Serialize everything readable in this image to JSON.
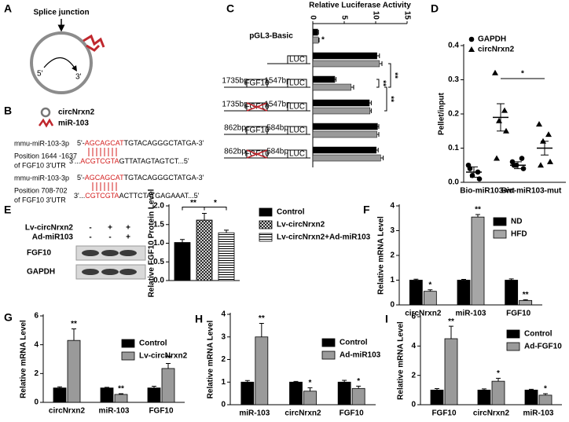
{
  "figure_a": {
    "label": "A",
    "junction": "Splice junction",
    "five_prime": "5'",
    "three_prime": "3'"
  },
  "figure_b": {
    "label": "B",
    "legend": [
      "circNrxn2",
      "miR-103"
    ],
    "sites": [
      {
        "mirna": "mmu-miR-103-3p",
        "mirna_seq": [
          "5'-",
          "AGCAGCAT",
          "TGTACAGGGCTATGA-3'"
        ],
        "position": "Position 1644 -1637",
        "utr": "of FGF10 3'UTR",
        "target_seq": [
          "3'...",
          "ACGTCGTA",
          "GTTATAGTAGTCT...5'"
        ]
      },
      {
        "mirna": "mmu-miR-103-3p",
        "mirna_seq": [
          "5'-",
          "AGCAGCAT",
          "TGTACAGGGCTATGA-3'"
        ],
        "position": "Position 708-702",
        "utr": "of FGF10 3'UTR",
        "target_seq": [
          "3'...",
          "CGTCGTA",
          "ACTTCTATGAGAAAT...5'"
        ]
      }
    ]
  },
  "chart_data": [
    {
      "label": "C",
      "type": "hbar",
      "xlabel": "Relative Luciferase Activity",
      "xlim": [
        0,
        15
      ],
      "xticks": [
        0,
        5,
        10,
        15
      ],
      "categories": [
        "pGL3-Basic",
        null,
        null,
        null,
        null,
        null
      ],
      "constructs": [
        null,
        {
          "reporter": "LUC"
        },
        {
          "left": "1735bp",
          "gene": "FGF10",
          "right": "1547bp",
          "reporter": "LUC",
          "mutated": false
        },
        {
          "left": "1735bp",
          "gene": "FGF10",
          "right": "1547bp",
          "reporter": "LUC",
          "mutated": true
        },
        {
          "left": "862bp",
          "gene": "FGF10",
          "right": "584bp",
          "reporter": "LUC",
          "mutated": false
        },
        {
          "left": "862bp",
          "gene": "FGF10",
          "right": "584bp",
          "reporter": "LUC",
          "mutated": true
        }
      ],
      "series": [
        {
          "color": "#000000",
          "values": [
            0.8,
            10.2,
            3.5,
            9.0,
            10.3,
            10.1
          ],
          "errors": [
            0.1,
            0.4,
            0.2,
            0.3,
            0.2,
            0.3
          ]
        },
        {
          "color": "#9a9a9a",
          "values": [
            0.9,
            10.6,
            6.1,
            9.1,
            10.2,
            10.8
          ],
          "errors": [
            0.1,
            0.4,
            0.4,
            0.2,
            0.3,
            0.4
          ],
          "significance": [
            "*",
            null,
            null,
            null,
            null,
            null
          ]
        }
      ],
      "brackets": [
        {
          "text": "**",
          "from": [
            1,
            1
          ],
          "to": [
            1,
            2
          ]
        },
        {
          "text": "**",
          "from": [
            0,
            2
          ],
          "to": [
            1,
            2
          ]
        },
        {
          "text": "**",
          "from": [
            1,
            2
          ],
          "to": [
            1,
            3
          ]
        }
      ]
    },
    {
      "label": "D",
      "type": "dot",
      "ylabel": "Pellet/input",
      "ylim": [
        0,
        0.4
      ],
      "yticks": [
        {
          "value": 0,
          "label": "0.0"
        },
        0.1,
        0.2,
        0.3,
        0.4
      ],
      "categories": [
        "Bio-miR103-wt",
        "Bio-miR103-mut"
      ],
      "legend": "upper left",
      "series": [
        {
          "name": "GAPDH",
          "marker": "circle",
          "points": [
            [
              0.05,
              0.03,
              0.02,
              0.01,
              0.04
            ],
            [
              0.06,
              0.07,
              0.05,
              0.04,
              0.05
            ]
          ],
          "means": [
            0.03,
            0.05
          ],
          "errors": [
            0.015,
            0.01
          ]
        },
        {
          "name": "circNrxn2",
          "marker": "triangle",
          "points": [
            [
              0.32,
              0.21,
              0.18,
              0.15,
              0.07
            ],
            [
              0.17,
              0.14,
              0.12,
              0.06,
              0.05
            ]
          ],
          "means": [
            0.19,
            0.1
          ],
          "errors": [
            0.04,
            0.02
          ]
        }
      ],
      "brackets": [
        {
          "text": "*",
          "from": [
            1,
            0
          ],
          "to": [
            1,
            1
          ]
        }
      ]
    },
    {
      "label": "E",
      "type": "bar",
      "blot": {
        "rows": [
          "Lv-circNrxn2",
          "Ad-miR103"
        ],
        "signs": [
          [
            "-",
            "+",
            "+"
          ],
          [
            "-",
            "-",
            "+"
          ]
        ],
        "bands": [
          "FGF10",
          "GAPDH"
        ]
      },
      "ylabel": "Relative FGF10 Protein Level",
      "ylim": [
        0,
        2
      ],
      "yticks": [
        {
          "value": 0,
          "label": "0.0"
        },
        0.5,
        {
          "value": 1,
          "label": "1.0"
        },
        1.5,
        {
          "value": 2,
          "label": "2.0"
        }
      ],
      "categories": [
        null
      ],
      "legend": "right",
      "series": [
        {
          "name": "Control",
          "color": "#000000",
          "pattern": "solid",
          "values": [
            1.02
          ],
          "errors": [
            0.08
          ]
        },
        {
          "name": "Lv-circNrxn2",
          "color": "#000000",
          "pattern": "crosshatch",
          "values": [
            1.62
          ],
          "errors": [
            0.18
          ]
        },
        {
          "name": "Lv-circNrxn2+Ad-miR103",
          "color": "#000000",
          "pattern": "hstripes",
          "values": [
            1.28
          ],
          "errors": [
            0.07
          ]
        }
      ],
      "brackets": [
        {
          "text": "**",
          "from": [
            0,
            0
          ],
          "to": [
            1,
            0
          ]
        },
        {
          "text": "*",
          "from": [
            1,
            0
          ],
          "to": [
            2,
            0
          ]
        }
      ]
    },
    {
      "label": "F",
      "type": "bar",
      "ylabel": "Relative mRNA Level",
      "ylim": [
        0,
        4
      ],
      "yticks": [
        0,
        1,
        2,
        3,
        4
      ],
      "categories": [
        "circNrxn2",
        "miR-103",
        "FGF10"
      ],
      "legend": "upper right",
      "series": [
        {
          "name": "ND",
          "color": "#000000",
          "values": [
            1,
            1,
            1
          ],
          "errors": [
            0.04,
            0.03,
            0.05
          ]
        },
        {
          "name": "HFD",
          "color": "#a6a6a6",
          "values": [
            0.55,
            3.55,
            0.18
          ],
          "errors": [
            0.06,
            0.1,
            0.03
          ],
          "significance": [
            "*",
            "**",
            "**"
          ]
        }
      ]
    },
    {
      "label": "G",
      "type": "bar",
      "ylabel": "Relative mRNA Level",
      "ylim": [
        0,
        6
      ],
      "yticks": [
        0,
        2,
        4,
        6
      ],
      "categories": [
        "circNrxn2",
        "miR-103",
        "FGF10"
      ],
      "legend": "upper right",
      "series": [
        {
          "name": "Control",
          "color": "#000000",
          "values": [
            1,
            1,
            1
          ],
          "errors": [
            0.08,
            0.04,
            0.12
          ]
        },
        {
          "name": "Lv-circNrxn2",
          "color": "#9a9a9a",
          "values": [
            4.3,
            0.55,
            2.35
          ],
          "errors": [
            0.8,
            0.05,
            0.35
          ],
          "significance": [
            "**",
            "**",
            "**"
          ]
        }
      ]
    },
    {
      "label": "H",
      "type": "bar",
      "ylabel": "Relative mRNA Level",
      "ylim": [
        0,
        4
      ],
      "yticks": [
        0,
        1,
        2,
        3,
        4
      ],
      "categories": [
        "miR-103",
        "circNrxn2",
        "FGF10"
      ],
      "legend": "upper right",
      "series": [
        {
          "name": "Control",
          "color": "#000000",
          "values": [
            1,
            1,
            1
          ],
          "errors": [
            0.07,
            0.03,
            0.08
          ]
        },
        {
          "name": "Ad-miR103",
          "color": "#9a9a9a",
          "values": [
            3.0,
            0.6,
            0.72
          ],
          "errors": [
            0.6,
            0.15,
            0.1
          ],
          "significance": [
            "**",
            "*",
            "*"
          ]
        }
      ]
    },
    {
      "label": "I",
      "type": "bar",
      "ylabel": "Relative mRNA Level",
      "ylim": [
        0,
        6
      ],
      "yticks": [
        0,
        2,
        4,
        6
      ],
      "categories": [
        "FGF10",
        "circNrxn2",
        "miR-103"
      ],
      "legend": "upper right",
      "series": [
        {
          "name": "Control",
          "color": "#000000",
          "values": [
            1,
            1,
            1
          ],
          "errors": [
            0.1,
            0.08,
            0.05
          ]
        },
        {
          "name": "Ad-FGF10",
          "color": "#9a9a9a",
          "values": [
            4.5,
            1.6,
            0.65
          ],
          "errors": [
            0.85,
            0.2,
            0.1
          ],
          "significance": [
            "**",
            "*",
            "*"
          ]
        }
      ]
    }
  ]
}
